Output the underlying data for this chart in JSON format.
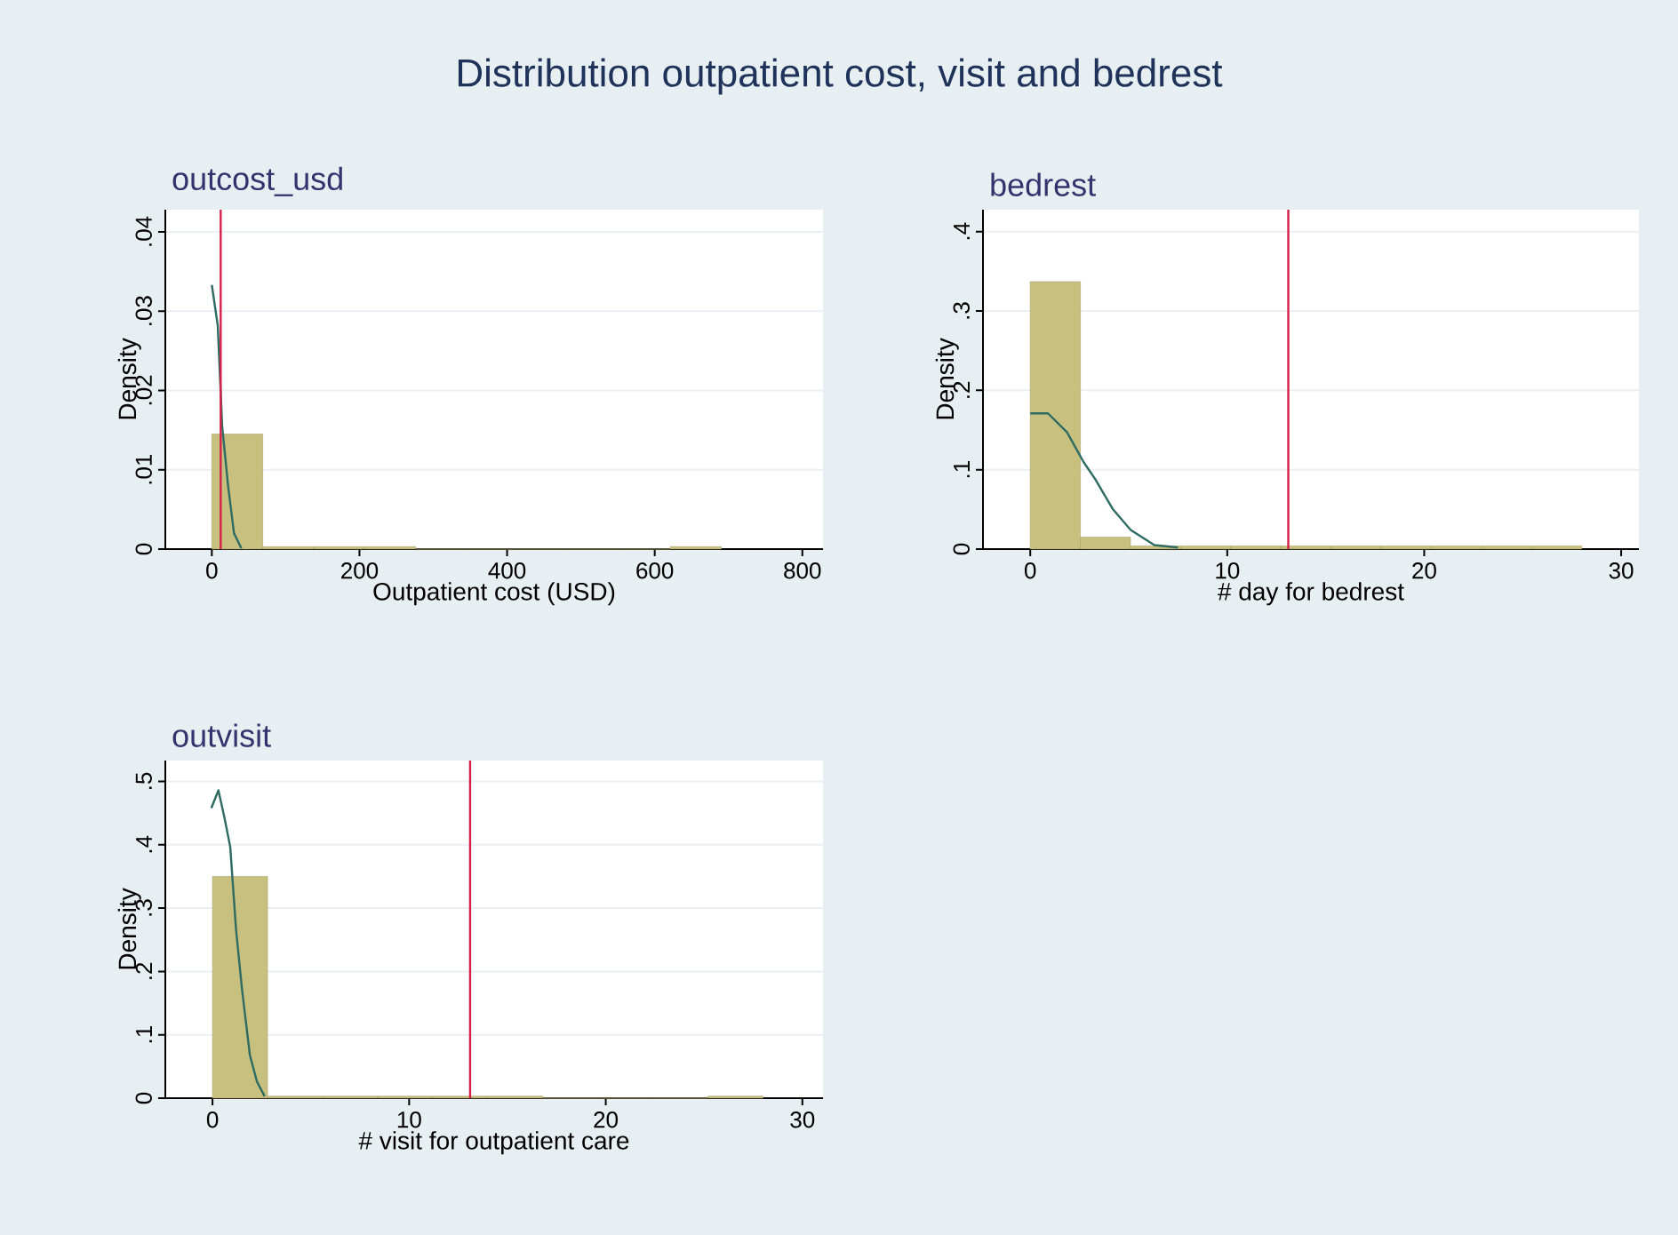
{
  "chart_data": [
    {
      "type": "other",
      "title": "Distribution outpatient cost, visit and bedrest"
    },
    {
      "type": "histogram",
      "title": "outcost_usd",
      "xlabel": "Outpatient cost (USD)",
      "ylabel": "Density",
      "color": "#c8c07f",
      "bins": [
        0,
        69,
        138,
        207,
        276,
        345,
        414,
        483,
        552,
        621,
        690
      ],
      "values": [
        0.0145,
        0.0003,
        0.0003,
        0.0003,
        0,
        0,
        0,
        0,
        0,
        0.0003
      ],
      "series": [
        {
          "type": "line",
          "color": "#2e6b62",
          "x": [
            0,
            8,
            14,
            22,
            30,
            40
          ],
          "values": [
            0.0333,
            0.0282,
            0.0155,
            0.008,
            0.002,
            0.0001
          ]
        }
      ],
      "ref_lines": [
        {
          "axis": "x",
          "value": 12,
          "color": "#d6204a"
        }
      ],
      "xlim": [
        -63,
        828
      ],
      "ylim": [
        0,
        0.0428
      ],
      "xticks": [
        0,
        200,
        400,
        600,
        800
      ],
      "yticks": [
        0,
        {
          "value": 0.01,
          "label": ".01"
        },
        {
          "value": 0.02,
          "label": ".02"
        },
        {
          "value": 0.03,
          "label": ".03"
        },
        {
          "value": 0.04,
          "label": ".04"
        }
      ],
      "grid": "y"
    },
    {
      "type": "histogram",
      "title": "bedrest",
      "xlabel": "# day for bedrest",
      "ylabel": "Density",
      "color": "#c8c07f",
      "bins": [
        0,
        2.545,
        5.09,
        7.636,
        10.18,
        12.73,
        15.27,
        17.82,
        20.36,
        22.91,
        25.45,
        28
      ],
      "values": [
        0.337,
        0.015,
        0.004,
        0.004,
        0.004,
        0.004,
        0.004,
        0.004,
        0.004,
        0.004,
        0.004
      ],
      "series": [
        {
          "type": "line",
          "color": "#2e6b62",
          "x": [
            0,
            0.9,
            1.87,
            2.7,
            3.3,
            4.2,
            5.1,
            6.3,
            7.5
          ],
          "values": [
            0.171,
            0.171,
            0.147,
            0.11,
            0.088,
            0.05,
            0.024,
            0.005,
            0.002
          ]
        }
      ],
      "ref_lines": [
        {
          "axis": "x",
          "value": 13.1,
          "color": "#d6204a"
        }
      ],
      "xlim": [
        -2.4,
        30.9
      ],
      "ylim": [
        0,
        0.4277
      ],
      "xticks": [
        0,
        10,
        20,
        30
      ],
      "yticks": [
        0,
        {
          "value": 0.1,
          "label": ".1"
        },
        {
          "value": 0.2,
          "label": ".2"
        },
        {
          "value": 0.3,
          "label": ".3"
        },
        {
          "value": 0.4,
          "label": ".4"
        }
      ],
      "grid": "y"
    },
    {
      "type": "histogram",
      "title": "outvisit",
      "xlabel": "# visit for outpatient care",
      "ylabel": "Density",
      "color": "#c8c07f",
      "bins": [
        0,
        2.8,
        5.6,
        8.4,
        11.2,
        14,
        16.8,
        19.6,
        22.4,
        25.2,
        28
      ],
      "values": [
        0.35,
        0.003,
        0.003,
        0.003,
        0.003,
        0.003,
        0,
        0,
        0,
        0.003
      ],
      "series": [
        {
          "type": "line",
          "color": "#2e6b62",
          "x": [
            -0.06,
            0.3,
            0.6,
            0.9,
            1.2,
            1.5,
            1.9,
            2.26,
            2.65
          ],
          "values": [
            0.458,
            0.486,
            0.444,
            0.397,
            0.265,
            0.172,
            0.068,
            0.026,
            0.003
          ]
        }
      ],
      "ref_lines": [
        {
          "axis": "x",
          "value": 13.1,
          "color": "#d6204a"
        }
      ],
      "xlim": [
        -2.4,
        31.05
      ],
      "ylim": [
        0,
        0.533
      ],
      "xticks": [
        0,
        10,
        20,
        30
      ],
      "yticks": [
        0,
        {
          "value": 0.1,
          "label": ".1"
        },
        {
          "value": 0.2,
          "label": ".2"
        },
        {
          "value": 0.3,
          "label": ".3"
        },
        {
          "value": 0.4,
          "label": ".4"
        },
        {
          "value": 0.5,
          "label": ".5"
        }
      ],
      "grid": "y"
    }
  ]
}
